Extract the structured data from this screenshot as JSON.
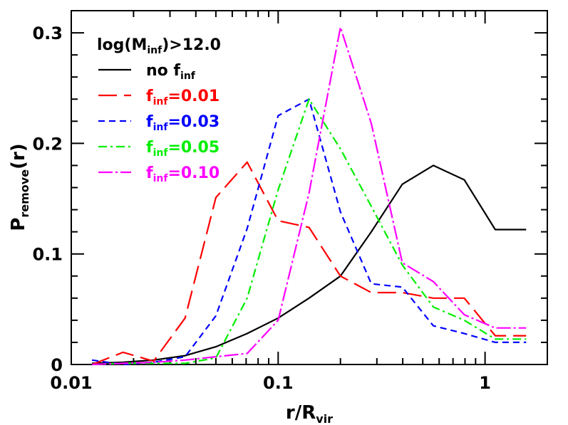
{
  "chart_data": {
    "type": "line",
    "xscale": "log",
    "xlim": [
      0.01,
      2.0
    ],
    "ylim": [
      0,
      0.32
    ],
    "grid": false,
    "legend_position": "top-left",
    "legend_title": {
      "main": "log(M",
      "sub": "inf",
      "tail": ")>12.0"
    },
    "xlabel": {
      "main": "r/R",
      "sub": "vir"
    },
    "ylabel": {
      "main": "P",
      "sub": "remove",
      "tail": "(r)"
    },
    "x_tick_labels": [
      {
        "value": 0.01,
        "label": "0.01"
      },
      {
        "value": 0.1,
        "label": "0.1"
      },
      {
        "value": 1,
        "label": "1"
      }
    ],
    "y_tick_labels": [
      {
        "value": 0,
        "label": "0"
      },
      {
        "value": 0.1,
        "label": "0.1"
      },
      {
        "value": 0.2,
        "label": "0.2"
      },
      {
        "value": 0.3,
        "label": "0.3"
      }
    ],
    "series": [
      {
        "name": "no f_inf",
        "legend": {
          "pre": "no f",
          "sub": "inf",
          "post": ""
        },
        "color": "#000000",
        "dash": "solid",
        "x": [
          0.0126,
          0.0178,
          0.025,
          0.0355,
          0.05,
          0.0708,
          0.1,
          0.141,
          0.2,
          0.282,
          0.398,
          0.562,
          0.794,
          1.12,
          1.58
        ],
        "y": [
          0.001,
          0.002,
          0.004,
          0.008,
          0.016,
          0.028,
          0.042,
          0.06,
          0.08,
          0.12,
          0.163,
          0.18,
          0.167,
          0.122,
          0.122
        ]
      },
      {
        "name": "f_inf=0.01",
        "legend": {
          "pre": "f",
          "sub": "inf",
          "post": "=0.01"
        },
        "color": "#ff0000",
        "dash": "long-dash",
        "x": [
          0.0126,
          0.0178,
          0.025,
          0.0355,
          0.05,
          0.0708,
          0.1,
          0.141,
          0.2,
          0.282,
          0.398,
          0.562,
          0.794,
          1.12,
          1.58
        ],
        "y": [
          0.0,
          0.011,
          0.003,
          0.042,
          0.151,
          0.183,
          0.13,
          0.124,
          0.08,
          0.065,
          0.065,
          0.06,
          0.06,
          0.026,
          0.026
        ]
      },
      {
        "name": "f_inf=0.03",
        "legend": {
          "pre": "f",
          "sub": "inf",
          "post": "=0.03"
        },
        "color": "#0000ff",
        "dash": "short-dash",
        "x": [
          0.0126,
          0.0178,
          0.025,
          0.0355,
          0.05,
          0.0708,
          0.1,
          0.141,
          0.2,
          0.282,
          0.398,
          0.562,
          0.794,
          1.12,
          1.58
        ],
        "y": [
          0.004,
          0.0,
          0.002,
          0.007,
          0.044,
          0.123,
          0.225,
          0.24,
          0.138,
          0.073,
          0.07,
          0.035,
          0.028,
          0.02,
          0.02
        ]
      },
      {
        "name": "f_inf=0.05",
        "legend": {
          "pre": "f",
          "sub": "inf",
          "post": "=0.05"
        },
        "color": "#00ee00",
        "dash": "dash-dot",
        "x": [
          0.0126,
          0.0178,
          0.025,
          0.0355,
          0.05,
          0.0708,
          0.1,
          0.141,
          0.2,
          0.282,
          0.398,
          0.562,
          0.794,
          1.12,
          1.58
        ],
        "y": [
          0.0,
          0.001,
          0.001,
          0.001,
          0.006,
          0.06,
          0.158,
          0.24,
          0.195,
          0.143,
          0.09,
          0.052,
          0.04,
          0.023,
          0.023
        ]
      },
      {
        "name": "f_inf=0.10",
        "legend": {
          "pre": "f",
          "sub": "inf",
          "post": "=0.10"
        },
        "color": "#ff00ff",
        "dash": "dot-long-dash",
        "x": [
          0.0126,
          0.0178,
          0.025,
          0.0355,
          0.05,
          0.0708,
          0.1,
          0.141,
          0.2,
          0.282,
          0.398,
          0.562,
          0.794,
          1.12,
          1.58
        ],
        "y": [
          0.0,
          0.001,
          0.002,
          0.004,
          0.007,
          0.01,
          0.04,
          0.155,
          0.305,
          0.218,
          0.092,
          0.075,
          0.045,
          0.033,
          0.033
        ]
      }
    ]
  }
}
